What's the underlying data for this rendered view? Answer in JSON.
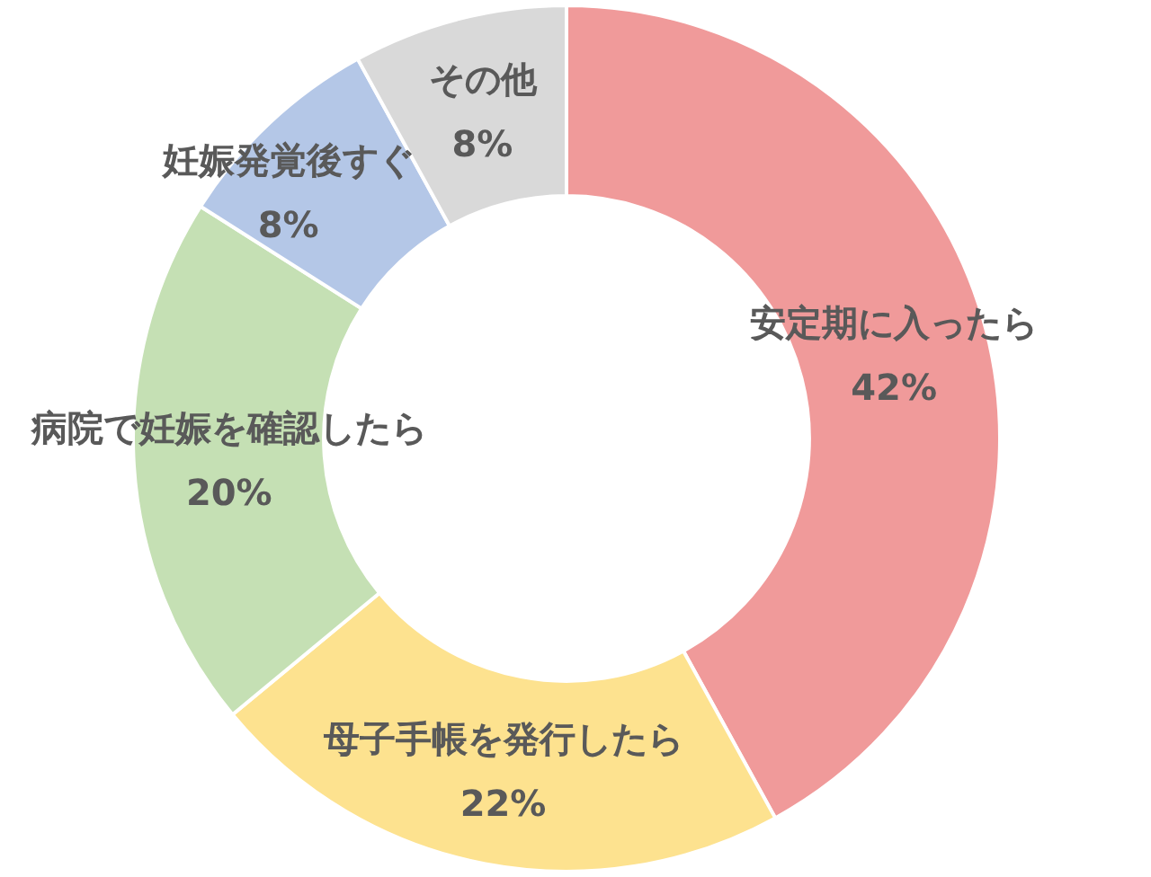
{
  "chart_data": {
    "type": "donut",
    "categories": [
      "安定期に入ったら",
      "母子手帳を発行したら",
      "病院で妊娠を確認したら",
      "妊娠発覚後すぐ",
      "その他"
    ],
    "values": [
      42,
      22,
      20,
      8,
      8
    ],
    "value_labels": [
      "42%",
      "22%",
      "20%",
      "8%",
      "8%"
    ],
    "colors": [
      "#f09a9a",
      "#fde28f",
      "#c5e0b4",
      "#b4c7e7",
      "#d9d9d9"
    ],
    "legend": false
  }
}
